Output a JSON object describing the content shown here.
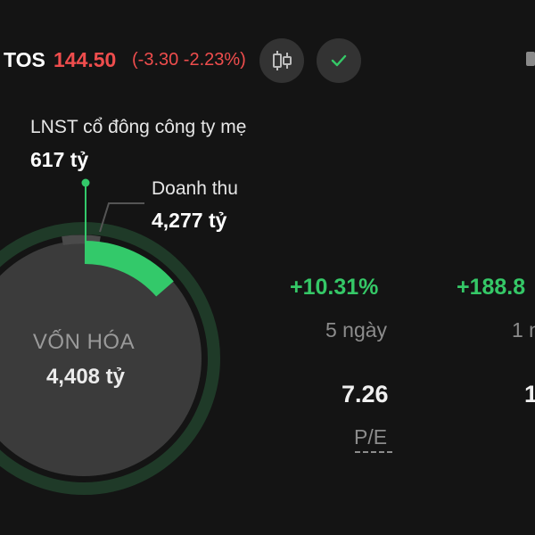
{
  "header": {
    "ticker": "TOS",
    "price": "144.50",
    "change": "(-3.30 -2.23%)",
    "candle_icon": "candlestick-icon",
    "check_icon": "check-icon",
    "colors": {
      "down": "#ef4d4d",
      "up": "#35c867",
      "background": "#141414"
    }
  },
  "metrics": {
    "profit_label": "LNST cổ đông công ty mẹ",
    "profit_value": "617 tỷ",
    "revenue_label": "Doanh thu",
    "revenue_value": "4,277 tỷ",
    "market_cap_label": "VỐN HÓA",
    "market_cap_value": "4,408 tỷ"
  },
  "stats": {
    "change_5d": "+10.31%",
    "change_5d_label": "5 ngày",
    "change_1y": "+188.8",
    "change_1y_label": "1 n",
    "pe_value": "7.26",
    "pe_label": "P/E",
    "second_value": "1"
  }
}
